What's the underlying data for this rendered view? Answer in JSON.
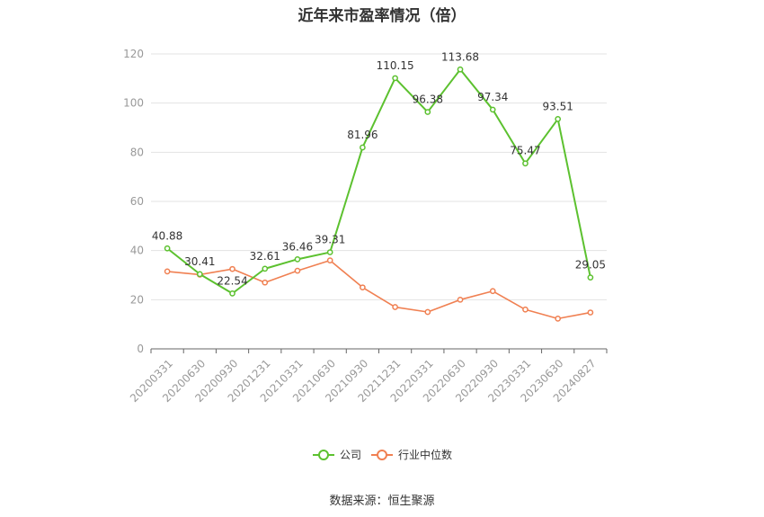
{
  "chart_data": {
    "type": "line",
    "title": "近年来市盈率情况（倍）",
    "categories": [
      "20200331",
      "20200630",
      "20200930",
      "20201231",
      "20210331",
      "20210630",
      "20210930",
      "20211231",
      "20220331",
      "20220630",
      "20220930",
      "20230331",
      "20230630",
      "20240827"
    ],
    "series": [
      {
        "name": "公司",
        "color": "#5cc12f",
        "values": [
          40.88,
          30.41,
          22.54,
          32.61,
          36.46,
          39.31,
          81.96,
          110.15,
          96.38,
          113.68,
          97.34,
          75.47,
          93.51,
          29.05
        ],
        "labels": [
          "40.88",
          "30.41",
          "22.54",
          "32.61",
          "36.46",
          "39.31",
          "81.96",
          "110.15",
          "96.38",
          "113.68",
          "97.34",
          "75.47",
          "93.51",
          "29.05"
        ]
      },
      {
        "name": "行业中位数",
        "color": "#f08052",
        "values": [
          31.5,
          30.2,
          32.5,
          27.0,
          31.8,
          36.0,
          25.0,
          17.0,
          15.0,
          20.0,
          23.5,
          16.0,
          12.3,
          14.8
        ]
      }
    ],
    "ylim": [
      0,
      120
    ],
    "yticks": [
      0,
      20,
      40,
      60,
      80,
      100,
      120
    ],
    "grid": true,
    "legend_position": "bottom"
  },
  "source_note": "数据来源：恒生聚源"
}
